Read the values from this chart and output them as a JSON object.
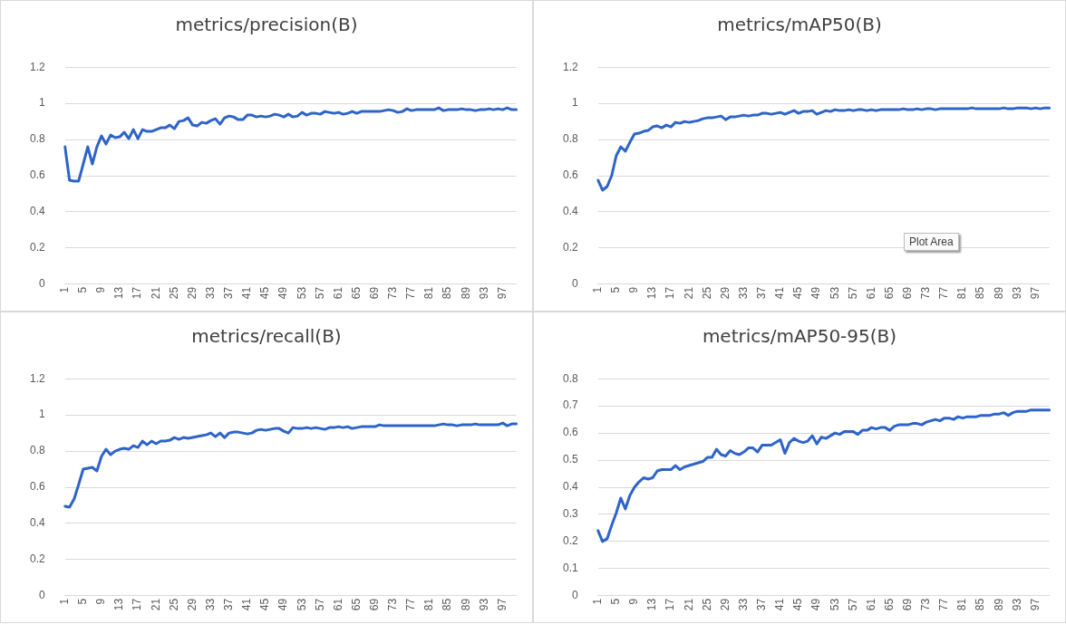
{
  "chart_data": [
    {
      "type": "line",
      "title": "metrics/precision(B)",
      "categories": [
        "1",
        null,
        null,
        null,
        "5",
        null,
        null,
        null,
        "9",
        null,
        null,
        null,
        "13",
        null,
        null,
        null,
        "17",
        null,
        null,
        null,
        "21",
        null,
        null,
        null,
        "25",
        null,
        null,
        null,
        "29",
        null,
        null,
        null,
        "33",
        null,
        null,
        null,
        "37",
        null,
        null,
        null,
        "41",
        null,
        null,
        null,
        "45",
        null,
        null,
        null,
        "49",
        null,
        null,
        null,
        "53",
        null,
        null,
        null,
        "57",
        null,
        null,
        null,
        "61",
        null,
        null,
        null,
        "65",
        null,
        null,
        null,
        "69",
        null,
        null,
        null,
        "73",
        null,
        null,
        null,
        "77",
        null,
        null,
        null,
        "81",
        null,
        null,
        null,
        "85",
        null,
        null,
        null,
        "89",
        null,
        null,
        null,
        "93",
        null,
        null,
        null,
        "97",
        null,
        null,
        null
      ],
      "series": [
        {
          "color": "#2e64c8",
          "values": [
            0.76,
            0.575,
            0.57,
            0.57,
            0.665,
            0.76,
            0.665,
            0.76,
            0.82,
            0.775,
            0.825,
            0.81,
            0.815,
            0.84,
            0.805,
            0.855,
            0.805,
            0.855,
            0.845,
            0.845,
            0.855,
            0.865,
            0.865,
            0.88,
            0.86,
            0.9,
            0.905,
            0.92,
            0.88,
            0.875,
            0.895,
            0.89,
            0.905,
            0.915,
            0.885,
            0.92,
            0.93,
            0.925,
            0.91,
            0.91,
            0.935,
            0.935,
            0.925,
            0.93,
            0.925,
            0.93,
            0.94,
            0.935,
            0.925,
            0.94,
            0.925,
            0.93,
            0.95,
            0.935,
            0.945,
            0.945,
            0.94,
            0.955,
            0.95,
            0.945,
            0.95,
            0.94,
            0.945,
            0.955,
            0.945,
            0.955,
            0.955,
            0.955,
            0.955,
            0.955,
            0.96,
            0.965,
            0.96,
            0.95,
            0.955,
            0.97,
            0.96,
            0.965,
            0.965,
            0.965,
            0.965,
            0.965,
            0.975,
            0.96,
            0.965,
            0.965,
            0.965,
            0.97,
            0.965,
            0.965,
            0.96,
            0.965,
            0.965,
            0.97,
            0.965,
            0.97,
            0.965,
            0.975,
            0.965,
            0.965
          ]
        }
      ],
      "ylim": [
        0,
        1.2
      ],
      "yticks": [
        0,
        0.2,
        0.4,
        0.6,
        0.8,
        1,
        1.2
      ],
      "grid": "y",
      "legend": false,
      "marker": "none",
      "line_style": "solid"
    },
    {
      "type": "line",
      "title": "metrics/mAP50(B)",
      "categories": [
        "1",
        null,
        null,
        null,
        "5",
        null,
        null,
        null,
        "9",
        null,
        null,
        null,
        "13",
        null,
        null,
        null,
        "17",
        null,
        null,
        null,
        "21",
        null,
        null,
        null,
        "25",
        null,
        null,
        null,
        "29",
        null,
        null,
        null,
        "33",
        null,
        null,
        null,
        "37",
        null,
        null,
        null,
        "41",
        null,
        null,
        null,
        "45",
        null,
        null,
        null,
        "49",
        null,
        null,
        null,
        "53",
        null,
        null,
        null,
        "57",
        null,
        null,
        null,
        "61",
        null,
        null,
        null,
        "65",
        null,
        null,
        null,
        "69",
        null,
        null,
        null,
        "73",
        null,
        null,
        null,
        "77",
        null,
        null,
        null,
        "81",
        null,
        null,
        null,
        "85",
        null,
        null,
        null,
        "89",
        null,
        null,
        null,
        "93",
        null,
        null,
        null,
        "97",
        null,
        null,
        null
      ],
      "series": [
        {
          "color": "#2e64c8",
          "values": [
            0.575,
            0.52,
            0.54,
            0.6,
            0.71,
            0.76,
            0.735,
            0.785,
            0.83,
            0.835,
            0.845,
            0.85,
            0.87,
            0.875,
            0.865,
            0.88,
            0.87,
            0.895,
            0.89,
            0.9,
            0.895,
            0.9,
            0.905,
            0.915,
            0.92,
            0.92,
            0.925,
            0.93,
            0.91,
            0.925,
            0.925,
            0.93,
            0.935,
            0.93,
            0.935,
            0.935,
            0.945,
            0.945,
            0.94,
            0.945,
            0.95,
            0.94,
            0.95,
            0.96,
            0.945,
            0.955,
            0.955,
            0.96,
            0.94,
            0.95,
            0.96,
            0.955,
            0.965,
            0.96,
            0.96,
            0.965,
            0.96,
            0.965,
            0.965,
            0.96,
            0.965,
            0.96,
            0.965,
            0.965,
            0.965,
            0.965,
            0.965,
            0.97,
            0.965,
            0.965,
            0.97,
            0.965,
            0.97,
            0.97,
            0.965,
            0.97,
            0.97,
            0.97,
            0.97,
            0.97,
            0.97,
            0.97,
            0.975,
            0.97,
            0.97,
            0.97,
            0.97,
            0.97,
            0.97,
            0.975,
            0.97,
            0.97,
            0.975,
            0.975,
            0.975,
            0.97,
            0.975,
            0.97,
            0.975,
            0.975
          ]
        }
      ],
      "ylim": [
        0,
        1.2
      ],
      "yticks": [
        0,
        0.2,
        0.4,
        0.6,
        0.8,
        1,
        1.2
      ],
      "grid": "y",
      "legend": false,
      "marker": "none",
      "line_style": "solid",
      "annotations": [
        "Plot Area"
      ]
    },
    {
      "type": "line",
      "title": "metrics/recall(B)",
      "categories": [
        "1",
        null,
        null,
        null,
        "5",
        null,
        null,
        null,
        "9",
        null,
        null,
        null,
        "13",
        null,
        null,
        null,
        "17",
        null,
        null,
        null,
        "21",
        null,
        null,
        null,
        "25",
        null,
        null,
        null,
        "29",
        null,
        null,
        null,
        "33",
        null,
        null,
        null,
        "37",
        null,
        null,
        null,
        "41",
        null,
        null,
        null,
        "45",
        null,
        null,
        null,
        "49",
        null,
        null,
        null,
        "53",
        null,
        null,
        null,
        "57",
        null,
        null,
        null,
        "61",
        null,
        null,
        null,
        "65",
        null,
        null,
        null,
        "69",
        null,
        null,
        null,
        "73",
        null,
        null,
        null,
        "77",
        null,
        null,
        null,
        "81",
        null,
        null,
        null,
        "85",
        null,
        null,
        null,
        "89",
        null,
        null,
        null,
        "93",
        null,
        null,
        null,
        "97",
        null,
        null,
        null
      ],
      "series": [
        {
          "color": "#2e64c8",
          "values": [
            0.495,
            0.49,
            0.535,
            0.615,
            0.7,
            0.705,
            0.71,
            0.69,
            0.77,
            0.81,
            0.78,
            0.8,
            0.81,
            0.815,
            0.81,
            0.83,
            0.82,
            0.855,
            0.835,
            0.855,
            0.84,
            0.855,
            0.855,
            0.86,
            0.875,
            0.865,
            0.875,
            0.87,
            0.875,
            0.88,
            0.885,
            0.89,
            0.9,
            0.88,
            0.9,
            0.875,
            0.9,
            0.905,
            0.905,
            0.9,
            0.895,
            0.9,
            0.915,
            0.92,
            0.915,
            0.92,
            0.925,
            0.925,
            0.91,
            0.9,
            0.93,
            0.925,
            0.925,
            0.93,
            0.925,
            0.93,
            0.925,
            0.92,
            0.93,
            0.93,
            0.935,
            0.93,
            0.935,
            0.925,
            0.93,
            0.935,
            0.935,
            0.935,
            0.935,
            0.945,
            0.94,
            0.94,
            0.94,
            0.94,
            0.94,
            0.94,
            0.94,
            0.94,
            0.94,
            0.94,
            0.94,
            0.94,
            0.945,
            0.95,
            0.945,
            0.945,
            0.94,
            0.945,
            0.945,
            0.945,
            0.95,
            0.945,
            0.945,
            0.945,
            0.945,
            0.945,
            0.955,
            0.94,
            0.95,
            0.95
          ]
        }
      ],
      "ylim": [
        0,
        1.2
      ],
      "yticks": [
        0,
        0.2,
        0.4,
        0.6,
        0.8,
        1,
        1.2
      ],
      "grid": "y",
      "legend": false,
      "marker": "none",
      "line_style": "solid"
    },
    {
      "type": "line",
      "title": "metrics/mAP50-95(B)",
      "categories": [
        "1",
        null,
        null,
        null,
        "5",
        null,
        null,
        null,
        "9",
        null,
        null,
        null,
        "13",
        null,
        null,
        null,
        "17",
        null,
        null,
        null,
        "21",
        null,
        null,
        null,
        "25",
        null,
        null,
        null,
        "29",
        null,
        null,
        null,
        "33",
        null,
        null,
        null,
        "37",
        null,
        null,
        null,
        "41",
        null,
        null,
        null,
        "45",
        null,
        null,
        null,
        "49",
        null,
        null,
        null,
        "53",
        null,
        null,
        null,
        "57",
        null,
        null,
        null,
        "61",
        null,
        null,
        null,
        "65",
        null,
        null,
        null,
        "69",
        null,
        null,
        null,
        "73",
        null,
        null,
        null,
        "77",
        null,
        null,
        null,
        "81",
        null,
        null,
        null,
        "85",
        null,
        null,
        null,
        "89",
        null,
        null,
        null,
        "93",
        null,
        null,
        null,
        "97",
        null,
        null,
        null
      ],
      "series": [
        {
          "color": "#2e64c8",
          "values": [
            0.24,
            0.2,
            0.21,
            0.26,
            0.305,
            0.36,
            0.32,
            0.37,
            0.4,
            0.42,
            0.435,
            0.43,
            0.435,
            0.46,
            0.465,
            0.465,
            0.465,
            0.48,
            0.465,
            0.475,
            0.48,
            0.485,
            0.49,
            0.495,
            0.51,
            0.51,
            0.54,
            0.52,
            0.515,
            0.535,
            0.525,
            0.52,
            0.53,
            0.545,
            0.545,
            0.53,
            0.555,
            0.555,
            0.555,
            0.565,
            0.575,
            0.525,
            0.565,
            0.58,
            0.57,
            0.565,
            0.57,
            0.59,
            0.56,
            0.585,
            0.58,
            0.59,
            0.6,
            0.595,
            0.605,
            0.605,
            0.605,
            0.595,
            0.61,
            0.61,
            0.62,
            0.615,
            0.62,
            0.62,
            0.61,
            0.625,
            0.63,
            0.63,
            0.63,
            0.635,
            0.635,
            0.63,
            0.64,
            0.645,
            0.65,
            0.645,
            0.655,
            0.655,
            0.65,
            0.66,
            0.655,
            0.66,
            0.66,
            0.66,
            0.665,
            0.665,
            0.665,
            0.67,
            0.67,
            0.675,
            0.665,
            0.675,
            0.68,
            0.68,
            0.68,
            0.685,
            0.685,
            0.685,
            0.685,
            0.685
          ]
        }
      ],
      "ylim": [
        0,
        0.8
      ],
      "yticks": [
        0,
        0.1,
        0.2,
        0.3,
        0.4,
        0.5,
        0.6,
        0.7,
        0.8
      ],
      "grid": "y",
      "legend": false,
      "marker": "none",
      "line_style": "solid"
    }
  ]
}
